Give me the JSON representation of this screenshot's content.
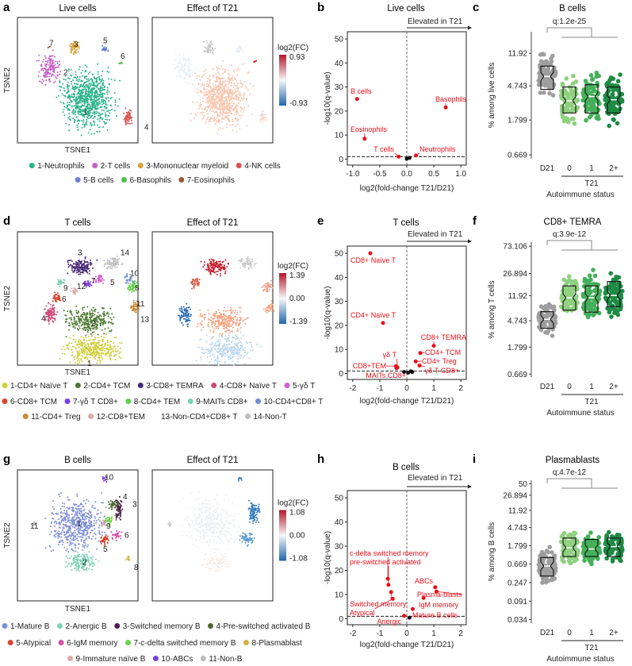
{
  "chart_data": [
    {
      "panel": "a",
      "type": "scatter",
      "subtype": "tsne",
      "titles": [
        "Live cells",
        "Effect of T21"
      ],
      "xlabel": "TSNE1",
      "ylabel": "TSNE2",
      "colorbar": {
        "label": "log2(FC)",
        "max": "0.93",
        "mid": "",
        "min": "-0.93"
      },
      "cluster_labels": [
        "1",
        "2",
        "3",
        "4",
        "5",
        "6",
        "7"
      ],
      "legend": [
        {
          "label": "1-Neutrophils",
          "color": "#2bb38a"
        },
        {
          "label": "2-T cells",
          "color": "#c65fc7"
        },
        {
          "label": "3-Mononuclear myeloid",
          "color": "#d9a43a"
        },
        {
          "label": "4-NK cells",
          "color": "#d9534f"
        },
        {
          "label": "5-B cells",
          "color": "#6b7fd6"
        },
        {
          "label": "6-Basophils",
          "color": "#4fc04a"
        },
        {
          "label": "7-Eosinophils",
          "color": "#9b5a35"
        }
      ],
      "legend_rows": [
        4,
        3
      ]
    },
    {
      "panel": "b",
      "type": "scatter",
      "subtype": "volcano",
      "title": "Live cells",
      "annotation": "Elevated in T21",
      "xlabel": "log2(fold-change T21/D21)",
      "ylabel": "-log10(q-value)",
      "xlim": [
        -1.1,
        1.1
      ],
      "ylim": [
        -2.5,
        53
      ],
      "xticks": [
        "-1.0",
        "-0.5",
        "0.0",
        "0.5",
        "1.0"
      ],
      "xtick_values": [
        -1,
        -0.5,
        0,
        0.5,
        1
      ],
      "yticks": [
        "0",
        "10",
        "20",
        "30",
        "40",
        "50"
      ],
      "ytick_values": [
        0,
        10,
        20,
        30,
        40,
        50
      ],
      "threshold": 1,
      "points": [
        {
          "label": "B cells",
          "x": -0.92,
          "y": 25,
          "sig": true
        },
        {
          "label": "Eosinophils",
          "x": -0.78,
          "y": 8.5,
          "sig": true
        },
        {
          "label": "T cells",
          "x": -0.15,
          "y": 1.0,
          "sig": true
        },
        {
          "label": "Neutrophils",
          "x": 0.17,
          "y": 1.5,
          "sig": true
        },
        {
          "label": "Basophils",
          "x": 0.72,
          "y": 21.5,
          "sig": true
        },
        {
          "label": "",
          "x": 0.0,
          "y": 0.2,
          "sig": false
        },
        {
          "label": "",
          "x": 0.05,
          "y": 0.5,
          "sig": false
        }
      ]
    },
    {
      "panel": "c",
      "type": "box",
      "title": "B cells",
      "ylabel": "% among live cells",
      "xlabel": "Autoimmune status",
      "group_label": "T21",
      "qvalue": "q:1.2e-25",
      "categories": [
        "D21",
        "0",
        "1",
        "2+"
      ],
      "colors": [
        "#9e9e9e",
        "#8fd17f",
        "#45b05a",
        "#1e8b45"
      ],
      "yticks": [
        "0.669",
        "1.799",
        "4.743",
        "11.92"
      ],
      "ytick_values": [
        0.669,
        1.799,
        4.743,
        11.92
      ],
      "ylim": [
        0.6,
        22
      ],
      "boxes": [
        {
          "q1": 4.3,
          "median": 6.2,
          "q3": 8.3,
          "min": 1.9,
          "max": 18
        },
        {
          "q1": 2.2,
          "median": 3.1,
          "q3": 4.6,
          "min": 0.9,
          "max": 12
        },
        {
          "q1": 2.2,
          "median": 3.5,
          "q3": 4.9,
          "min": 0.8,
          "max": 19
        },
        {
          "q1": 2.2,
          "median": 3.2,
          "q3": 4.6,
          "min": 0.68,
          "max": 19
        }
      ]
    },
    {
      "panel": "d",
      "type": "scatter",
      "subtype": "tsne",
      "titles": [
        "T cells",
        "Effect of T21"
      ],
      "xlabel": "TSNE1",
      "ylabel": "TSNE2",
      "colorbar": {
        "label": "log2(FC)",
        "max": "1.39",
        "mid": "0.00",
        "min": "-1.39"
      },
      "cluster_labels": [
        "1",
        "2",
        "3",
        "4",
        "5",
        "6",
        "7",
        "8",
        "9",
        "10",
        "11",
        "12",
        "13",
        "14"
      ],
      "legend": [
        {
          "label": "1-CD4+ Naïve T",
          "color": "#cfcf3a"
        },
        {
          "label": "2-CD4+ TCM",
          "color": "#4f7a35"
        },
        {
          "label": "3-CD8+ TEMRA",
          "color": "#4a2a7a"
        },
        {
          "label": "4-CD8+ Naïve T",
          "color": "#cc4a7a"
        },
        {
          "label": "5-γδ T",
          "color": "#d45fd0"
        },
        {
          "label": "6-CD8+ TCM",
          "color": "#d9452f"
        },
        {
          "label": "7-γδ T CD8+",
          "color": "#7b3fe0"
        },
        {
          "label": "8-CD4+ TEM",
          "color": "#5fd04a"
        },
        {
          "label": "9-MAITs CD8+",
          "color": "#7fd1b5"
        },
        {
          "label": "10-CD4+CD8+ T",
          "color": "#6f8fd0"
        },
        {
          "label": "11-CD4+ Treg",
          "color": "#c98a3a"
        },
        {
          "label": "12-CD8+TEM",
          "color": "#d9aaa8"
        },
        {
          "label": "13-Non-CD4+CD8+ T",
          "color": ""
        },
        {
          "label": "14-Non-T",
          "color": "#bdbdbd"
        }
      ],
      "legend_rows": [
        5,
        5,
        4
      ]
    },
    {
      "panel": "e",
      "type": "scatter",
      "subtype": "volcano",
      "title": "T cells",
      "annotation": "Elevated in T21",
      "xlabel": "log2(fold-change T21/D21)",
      "ylabel": "-log10(q-value)",
      "xlim": [
        -2.2,
        2.2
      ],
      "ylim": [
        -2.5,
        53
      ],
      "xticks": [
        "-2",
        "-1",
        "0",
        "1",
        "2"
      ],
      "xtick_values": [
        -2,
        -1,
        0,
        1,
        2
      ],
      "yticks": [
        "0",
        "10",
        "20",
        "30",
        "40",
        "50"
      ],
      "ytick_values": [
        0,
        10,
        20,
        30,
        40,
        50
      ],
      "threshold": 1,
      "points": [
        {
          "label": "CD8+ Naïve T",
          "x": -1.35,
          "y": 50,
          "sig": true
        },
        {
          "label": "CD4+ Naïve T",
          "x": -0.88,
          "y": 21,
          "sig": true
        },
        {
          "label": "CD8+ TEMRA",
          "x": 1.0,
          "y": 11.5,
          "sig": true
        },
        {
          "label": "CD4+ TCM",
          "x": 0.5,
          "y": 8.5,
          "sig": true
        },
        {
          "label": "CD4+ Treg",
          "x": 0.33,
          "y": 5,
          "sig": true
        },
        {
          "label": "γδ T CD8+",
          "x": 0.47,
          "y": 3.3,
          "sig": true
        },
        {
          "label": "γδ T",
          "x": -0.35,
          "y": 2.5,
          "sig": true
        },
        {
          "label": "CD8+TEM",
          "x": -0.4,
          "y": 3,
          "sig": true
        },
        {
          "label": "MAITs CD8+",
          "x": -0.38,
          "y": 2.2,
          "sig": true
        },
        {
          "label": "",
          "x": -0.1,
          "y": 0.6,
          "sig": false
        },
        {
          "label": "",
          "x": 0.05,
          "y": 0.3,
          "sig": false
        },
        {
          "label": "",
          "x": 0.15,
          "y": 0.9,
          "sig": false
        },
        {
          "label": "",
          "x": 0.2,
          "y": 0.6,
          "sig": false
        }
      ]
    },
    {
      "panel": "f",
      "type": "box",
      "title": "CD8+ TEMRA",
      "ylabel": "% among T cells",
      "xlabel": "Autoimmune status",
      "group_label": "T21",
      "qvalue": "q:3.9e-12",
      "categories": [
        "D21",
        "0",
        "1",
        "2+"
      ],
      "colors": [
        "#9e9e9e",
        "#8fd17f",
        "#45b05a",
        "#1e8b45"
      ],
      "yticks": [
        "0.669",
        "1.799",
        "4.743",
        "11.92",
        "26.894",
        "73.106"
      ],
      "ytick_values": [
        0.669,
        1.799,
        4.743,
        11.92,
        26.894,
        73.106
      ],
      "ylim": [
        0.6,
        85
      ],
      "boxes": [
        {
          "q1": 3.6,
          "median": 5.0,
          "q3": 6.6,
          "min": 0.7,
          "max": 26
        },
        {
          "q1": 7.0,
          "median": 11.0,
          "q3": 17.0,
          "min": 1.3,
          "max": 50
        },
        {
          "q1": 6.5,
          "median": 11.0,
          "q3": 17.0,
          "min": 1.0,
          "max": 55
        },
        {
          "q1": 8.0,
          "median": 12.0,
          "q3": 20.0,
          "min": 1.8,
          "max": 70
        }
      ]
    },
    {
      "panel": "g",
      "type": "scatter",
      "subtype": "tsne",
      "titles": [
        "B cells",
        "Effect of T21"
      ],
      "xlabel": "TSNE1",
      "ylabel": "TSNE2",
      "colorbar": {
        "label": "log2(FC)",
        "max": "1.08",
        "mid": "0.00",
        "min": "-1.08"
      },
      "cluster_labels": [
        "1",
        "2",
        "3",
        "4",
        "5",
        "6",
        "7",
        "8",
        "9",
        "10",
        "11"
      ],
      "legend": [
        {
          "label": "1-Mature B",
          "color": "#7f8fd6"
        },
        {
          "label": "2-Anergic B",
          "color": "#7fd1b5"
        },
        {
          "label": "3-Switched memory B",
          "color": "#4a1f4a"
        },
        {
          "label": "4-Pre-switched activated B",
          "color": "#4f6a35"
        },
        {
          "label": "5-Atypical",
          "color": "#d9452f"
        },
        {
          "label": "6-IgM memory",
          "color": "#d94fa8"
        },
        {
          "label": "7-c-delta switched memory B",
          "color": "#6fd04a"
        },
        {
          "label": "8-Plasmablast",
          "color": "#d4b040"
        },
        {
          "label": "9-Immature naïve B",
          "color": "#d9aaa8"
        },
        {
          "label": "10-ABCs",
          "color": "#7b3fe0"
        },
        {
          "label": "11-Non-B",
          "color": "#bdbdbd"
        }
      ],
      "legend_rows": [
        4,
        4,
        3
      ]
    },
    {
      "panel": "h",
      "type": "scatter",
      "subtype": "volcano",
      "title": "B cells",
      "annotation": "Elevated in T21",
      "xlabel": "log2(fold-change T21/D21)",
      "ylabel": "-log10(q-value)",
      "xlim": [
        -2.2,
        2.2
      ],
      "ylim": [
        -2.5,
        53
      ],
      "xticks": [
        "-2",
        "-1",
        "0",
        "1",
        "2"
      ],
      "xtick_values": [
        -2,
        -1,
        0,
        1,
        2
      ],
      "yticks": [
        "0",
        "10",
        "20",
        "30",
        "40",
        "50"
      ],
      "ytick_values": [
        0,
        10,
        20,
        30,
        40,
        50
      ],
      "threshold": 1,
      "points": [
        {
          "label": "c-delta switched memory",
          "x": -0.7,
          "y": 16.5,
          "sig": true
        },
        {
          "label": "pre-switched activated",
          "x": -0.68,
          "y": 14,
          "sig": true
        },
        {
          "label": "Switched memory",
          "x": -0.58,
          "y": 11,
          "sig": true
        },
        {
          "label": "Atypical",
          "x": -0.52,
          "y": 8.2,
          "sig": true
        },
        {
          "label": "Anergic",
          "x": -0.1,
          "y": 1.2,
          "sig": true
        },
        {
          "label": "ABCs",
          "x": 1.05,
          "y": 13,
          "sig": true
        },
        {
          "label": "Plasma-blasts",
          "x": 1.1,
          "y": 11.2,
          "sig": true
        },
        {
          "label": "IgM memory",
          "x": 0.62,
          "y": 8.6,
          "sig": true
        },
        {
          "label": "Mature B cells",
          "x": 0.22,
          "y": 4,
          "sig": true
        },
        {
          "label": "",
          "x": 0.1,
          "y": 0.4,
          "sig": false
        }
      ]
    },
    {
      "panel": "i",
      "type": "box",
      "title": "Plasmablasts",
      "ylabel": "% among B cells",
      "xlabel": "Autoimmune status",
      "group_label": "T21",
      "qvalue": "q:4.7e-12",
      "categories": [
        "D21",
        "0",
        "1",
        "2+"
      ],
      "colors": [
        "#9e9e9e",
        "#8fd17f",
        "#45b05a",
        "#1e8b45"
      ],
      "yticks": [
        "0.034",
        "0.091",
        "0.247",
        "0.669",
        "1.799",
        "4.743",
        "11.92",
        "26.894",
        "50"
      ],
      "ytick_values": [
        0.034,
        0.091,
        0.247,
        0.669,
        1.799,
        4.743,
        11.92,
        26.894,
        50
      ],
      "ylim": [
        0.028,
        60
      ],
      "boxes": [
        {
          "q1": 0.35,
          "median": 0.6,
          "q3": 0.95,
          "min": 0.04,
          "max": 3.5
        },
        {
          "q1": 1.0,
          "median": 1.6,
          "q3": 2.7,
          "min": 0.09,
          "max": 14
        },
        {
          "q1": 1.0,
          "median": 1.5,
          "q3": 2.5,
          "min": 0.25,
          "max": 9
        },
        {
          "q1": 1.0,
          "median": 1.7,
          "q3": 2.7,
          "min": 0.2,
          "max": 50
        }
      ]
    }
  ]
}
